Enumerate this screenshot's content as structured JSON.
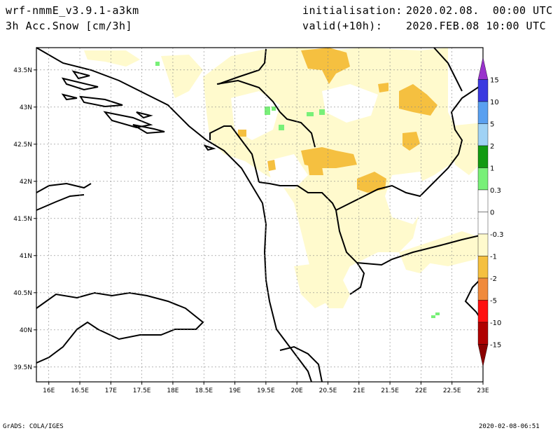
{
  "header": {
    "model": "wrf-nmmE_v3.9.1-a3km",
    "field": "3h Acc.Snow [cm/3h]",
    "init_label": "initialisation:",
    "init_value": "2020.02.08.  00:00 UTC",
    "valid_label": "valid(+10h):",
    "valid_value": "2020.FEB.08 10:00 UTC"
  },
  "footer": {
    "left": "GrADS: COLA/IGES",
    "right": "2020-02-08-06:51"
  },
  "axes": {
    "lon_range": [
      15.8,
      23.0
    ],
    "lat_range": [
      39.3,
      43.8
    ],
    "lon_ticks": [
      "16E",
      "16.5E",
      "17E",
      "17.5E",
      "18E",
      "18.5E",
      "19E",
      "19.5E",
      "20E",
      "20.5E",
      "21E",
      "21.5E",
      "22E",
      "22.5E",
      "23E"
    ],
    "lat_ticks": [
      "39.5N",
      "40N",
      "40.5N",
      "41N",
      "41.5N",
      "42N",
      "42.5N",
      "43N",
      "43.5N"
    ]
  },
  "colorbar": {
    "labels": [
      "15",
      "10",
      "5",
      "2",
      "1",
      "0.3",
      "0",
      "-0.3",
      "-1",
      "-2",
      "-5",
      "-10",
      "-15"
    ],
    "colors": [
      "#9932cc",
      "#3a3ae0",
      "#5aa0f0",
      "#a0d2f5",
      "#129a12",
      "#78f078",
      "#ffffff",
      "#ffffff",
      "#fffacd",
      "#f5c040",
      "#f08a3c",
      "#ff1010",
      "#b00000",
      "#8b0000"
    ]
  }
}
